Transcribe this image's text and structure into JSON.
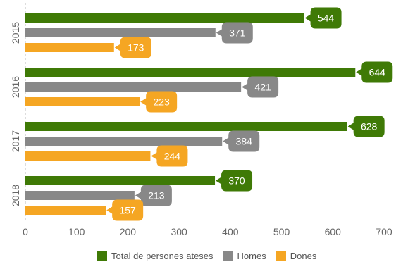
{
  "chart_data": {
    "type": "bar",
    "orientation": "horizontal",
    "categories": [
      "2015",
      "2016",
      "2017",
      "2018"
    ],
    "series": [
      {
        "name": "Total de persones ateses",
        "color": "#3f7a06",
        "values": [
          544,
          644,
          628,
          370
        ]
      },
      {
        "name": "Homes",
        "color": "#888888",
        "values": [
          371,
          421,
          384,
          213
        ]
      },
      {
        "name": "Dones",
        "color": "#f5a623",
        "values": [
          173,
          223,
          244,
          157
        ]
      }
    ],
    "x_ticks": [
      0,
      100,
      200,
      300,
      400,
      500,
      600,
      700
    ],
    "xlim": [
      0,
      700
    ],
    "title": "",
    "xlabel": "",
    "ylabel": "",
    "grid": false,
    "legend_position": "bottom"
  }
}
